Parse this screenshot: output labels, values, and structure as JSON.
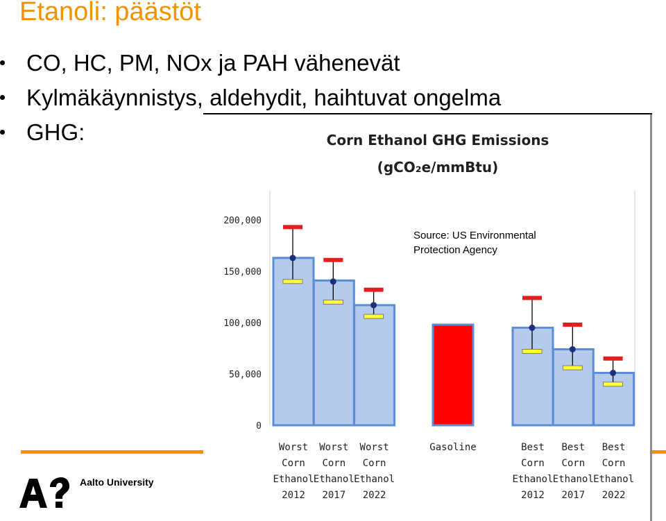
{
  "slide": {
    "title": "Etanoli: päästöt",
    "bullets": [
      "CO, HC, PM, NOx ja PAH vähenevät",
      "Kylmäkäynnistys, aldehydit, haihtuvat ongelma",
      "GHG:"
    ],
    "footer_logo_text": "Aalto University"
  },
  "source_note": [
    "Source: US Environmental",
    "Protection Agency"
  ],
  "colors": {
    "accent": "#f39200",
    "bar_fill": "#b4cbee",
    "bar_stroke": "#5b8dd6",
    "gasoline": "#ff0000",
    "high_marker": "#e31e1e",
    "low_marker": "#ffff33",
    "mid_marker": "#1f2d7a"
  },
  "chart_data": {
    "type": "bar",
    "title_line1": "Corn Ethanol GHG Emissions",
    "title_line2": "(gCO₂e/mmBtu)",
    "ylim": [
      0,
      200000
    ],
    "y_ticks": [
      "0",
      "50,000",
      "100,000",
      "150,000",
      "200,000"
    ],
    "y_tick_values": [
      0,
      50000,
      100000,
      150000,
      200000
    ],
    "categories": [
      [
        "Worst",
        "Corn",
        "Ethanol",
        "2012"
      ],
      [
        "Worst",
        "Corn",
        "Ethanol",
        "2017"
      ],
      [
        "Worst",
        "Corn",
        "Ethanol",
        "2022"
      ],
      [
        "Gasoline"
      ],
      [
        "Best",
        "Corn",
        "Ethanol",
        "2012"
      ],
      [
        "Best",
        "Corn",
        "Ethanol",
        "2017"
      ],
      [
        "Best",
        "Corn",
        "Ethanol",
        "2022"
      ]
    ],
    "values": [
      163000,
      141000,
      117000,
      98000,
      95000,
      74000,
      51000
    ],
    "high": [
      193000,
      161000,
      132000,
      null,
      124000,
      98000,
      65000
    ],
    "low": [
      140000,
      120000,
      106000,
      null,
      72000,
      56000,
      40000
    ],
    "mid": [
      163000,
      140000,
      117000,
      null,
      95000,
      74000,
      51000
    ]
  }
}
